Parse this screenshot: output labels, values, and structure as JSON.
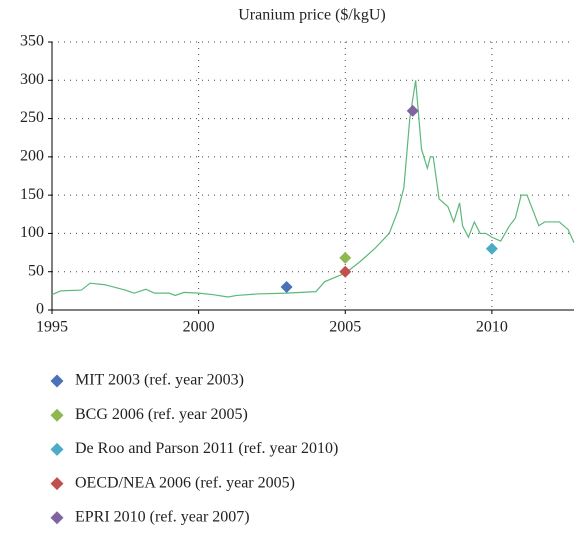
{
  "chart_data": {
    "type": "line",
    "title": "Uranium price ($/kgU)",
    "x": [
      1995,
      1995.3,
      1996,
      1996.3,
      1996.8,
      1997.5,
      1997.8,
      1998.2,
      1998.5,
      1999,
      1999.2,
      1999.5,
      2000,
      2000.5,
      2001,
      2001.3,
      2002,
      2003,
      2004,
      2004.3,
      2004.8,
      2005,
      2005.3,
      2005.5,
      2006,
      2006.5,
      2006.8,
      2007,
      2007.2,
      2007.4,
      2007.6,
      2007.8,
      2007.9,
      2008,
      2008.2,
      2008.5,
      2008.7,
      2008.9,
      2009,
      2009.2,
      2009.4,
      2009.6,
      2009.8,
      2010,
      2010.3,
      2010.6,
      2010.8,
      2011,
      2011.2,
      2011.4,
      2011.6,
      2011.8,
      2012.3,
      2012.6,
      2012.8
    ],
    "series": [
      {
        "color": "#5cb87a",
        "values": [
          20,
          25,
          26,
          35,
          33,
          26,
          22,
          27,
          22,
          22,
          19,
          23,
          22,
          20,
          17,
          19,
          21,
          22,
          24,
          37,
          45,
          48,
          57,
          63,
          80,
          100,
          130,
          160,
          250,
          300,
          210,
          185,
          200,
          200,
          145,
          135,
          115,
          140,
          110,
          95,
          115,
          100,
          100,
          95,
          90,
          110,
          120,
          150,
          150,
          130,
          110,
          115,
          115,
          105,
          88
        ]
      }
    ],
    "markers": [
      {
        "name": "MIT 2003 (ref. year 2003)",
        "color": "#4a72b8",
        "x": 2003,
        "y": 30
      },
      {
        "name": "BCG 2006 (ref. year 2005)",
        "color": "#8fb84e",
        "x": 2005,
        "y": 68
      },
      {
        "name": "De Roo and Parson 2011 (ref. year 2010)",
        "color": "#4bacc6",
        "x": 2010,
        "y": 80
      },
      {
        "name": "OECD/NEA 2006 (ref. year 2005)",
        "color": "#c0504d",
        "x": 2005,
        "y": 50
      },
      {
        "name": "EPRI 2010 (ref. year 2007)",
        "color": "#8064a2",
        "x": 2007.3,
        "y": 260
      }
    ],
    "xlim": [
      1995,
      2012.8
    ],
    "xticks": [
      1995,
      2000,
      2005,
      2010
    ],
    "ylim": [
      0,
      350
    ],
    "yticks": [
      0,
      50,
      100,
      150,
      200,
      250,
      300,
      350
    ],
    "grid": true
  }
}
